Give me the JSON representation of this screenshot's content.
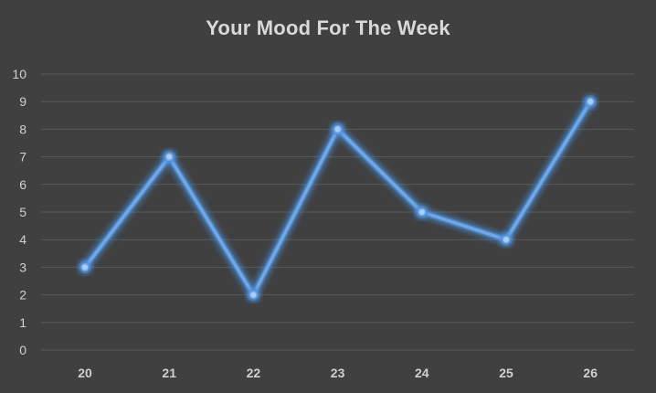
{
  "chart_data": {
    "type": "line",
    "title": "Your Mood For The Week",
    "xlabel": "",
    "ylabel": "",
    "categories": [
      "20",
      "21",
      "22",
      "23",
      "24",
      "25",
      "26"
    ],
    "series": [
      {
        "values": [
          3,
          7,
          2,
          8,
          5,
          4,
          9
        ],
        "color": "#6fa8e8"
      }
    ],
    "ylim": [
      0,
      10
    ],
    "yticks": [
      "0",
      "1",
      "2",
      "3",
      "4",
      "5",
      "6",
      "7",
      "8",
      "9",
      "10"
    ],
    "grid": true,
    "legend": "none",
    "colors": {
      "background": "#404040",
      "grid": "#5a5a5a",
      "text": "#d0d0d0",
      "line": "#6fa8e8",
      "glow": "#4f8fd8"
    }
  }
}
